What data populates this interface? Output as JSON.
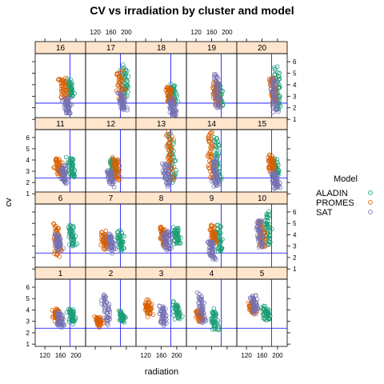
{
  "chart_data": {
    "type": "scatter",
    "title": "CV vs irradiation by cluster and model",
    "xlabel": "radiation",
    "ylabel": "cv",
    "xlim": [
      95,
      225
    ],
    "ylim": [
      0.8,
      6.7
    ],
    "x_ticks": [
      120,
      160,
      200
    ],
    "y_ticks": [
      1,
      2,
      3,
      4,
      5,
      6
    ],
    "vline_x": 185,
    "hline_y": 2.4,
    "grid": false,
    "legend_position": "right",
    "legend_title": "Model",
    "series": [
      {
        "name": "ALADIN",
        "color": "#1b9e77"
      },
      {
        "name": "PROMES",
        "color": "#d95f02"
      },
      {
        "name": "SAT",
        "color": "#7570b3"
      }
    ],
    "layout": [
      [
        16,
        17,
        18,
        19,
        20
      ],
      [
        11,
        12,
        13,
        14,
        15
      ],
      [
        6,
        7,
        8,
        9,
        10
      ],
      [
        1,
        2,
        3,
        4,
        5
      ]
    ],
    "panels": [
      {
        "cluster": "1",
        "groups": {
          "ALADIN": {
            "x": 190,
            "y": [
              2.9,
              4.1
            ]
          },
          "PROMES": {
            "x": 150,
            "y": [
              2.9,
              4.0
            ]
          },
          "SAT": {
            "x": 160,
            "y": [
              2.6,
              3.8
            ]
          }
        }
      },
      {
        "cluster": "2",
        "groups": {
          "ALADIN": {
            "x": 190,
            "y": [
              3.0,
              3.8
            ]
          },
          "PROMES": {
            "x": 128,
            "y": [
              2.7,
              3.3
            ]
          },
          "SAT": {
            "x": 148,
            "y": [
              2.8,
              5.3
            ]
          }
        }
      },
      {
        "cluster": "3",
        "groups": {
          "ALADIN": {
            "x": 200,
            "y": [
              3.3,
              4.5
            ]
          },
          "PROMES": {
            "x": 128,
            "y": [
              3.6,
              4.7
            ]
          },
          "SAT": {
            "x": 165,
            "y": [
              2.7,
              4.3
            ]
          }
        }
      },
      {
        "cluster": "4",
        "groups": {
          "ALADIN": {
            "x": 168,
            "y": [
              2.3,
              3.9
            ]
          },
          "PROMES": {
            "x": 128,
            "y": [
              3.1,
              3.9
            ]
          },
          "SAT": {
            "x": 135,
            "y": [
              2.9,
              5.4
            ]
          }
        }
      },
      {
        "cluster": "5",
        "groups": {
          "ALADIN": {
            "x": 172,
            "y": [
              3.2,
              4.1
            ]
          },
          "PROMES": {
            "x": 135,
            "y": [
              3.8,
              4.6
            ]
          },
          "SAT": {
            "x": 140,
            "y": [
              3.7,
              5.3
            ]
          }
        }
      },
      {
        "cluster": "6",
        "groups": {
          "ALADIN": {
            "x": 190,
            "y": [
              3.0,
              4.8
            ]
          },
          "PROMES": {
            "x": 152,
            "y": [
              2.2,
              4.9
            ]
          },
          "SAT": {
            "x": 155,
            "y": [
              2.7,
              4.0
            ]
          }
        }
      },
      {
        "cluster": "7",
        "groups": {
          "ALADIN": {
            "x": 185,
            "y": [
              2.7,
              4.2
            ]
          },
          "PROMES": {
            "x": 145,
            "y": [
              2.8,
              4.1
            ]
          },
          "SAT": {
            "x": 160,
            "y": [
              2.6,
              4.0
            ]
          }
        }
      },
      {
        "cluster": "8",
        "groups": {
          "ALADIN": {
            "x": 200,
            "y": [
              3.2,
              4.6
            ]
          },
          "PROMES": {
            "x": 165,
            "y": [
              3.1,
              4.7
            ]
          },
          "SAT": {
            "x": 175,
            "y": [
              2.7,
              4.2
            ]
          }
        }
      },
      {
        "cluster": "9",
        "groups": {
          "ALADIN": {
            "x": 180,
            "y": [
              2.5,
              4.7
            ]
          },
          "PROMES": {
            "x": 165,
            "y": [
              3.3,
              4.7
            ]
          },
          "SAT": {
            "x": 160,
            "y": [
              1.9,
              3.5
            ]
          }
        }
      },
      {
        "cluster": "10",
        "groups": {
          "ALADIN": {
            "x": 175,
            "y": [
              3.2,
              5.9
            ]
          },
          "PROMES": {
            "x": 160,
            "y": [
              2.9,
              5.1
            ]
          },
          "SAT": {
            "x": 155,
            "y": [
              3.0,
              5.3
            ]
          }
        }
      },
      {
        "cluster": "11",
        "groups": {
          "ALADIN": {
            "x": 190,
            "y": [
              2.5,
              4.1
            ]
          },
          "PROMES": {
            "x": 155,
            "y": [
              2.6,
              4.2
            ]
          },
          "SAT": {
            "x": 168,
            "y": [
              1.9,
              3.4
            ]
          }
        }
      },
      {
        "cluster": "12",
        "groups": {
          "ALADIN": {
            "x": 168,
            "y": [
              2.7,
              4.1
            ]
          },
          "PROMES": {
            "x": 175,
            "y": [
              2.3,
              4.2
            ]
          },
          "SAT": {
            "x": 158,
            "y": [
              1.9,
              3.0
            ]
          }
        }
      },
      {
        "cluster": "13",
        "groups": {
          "ALADIN": {
            "x": 188,
            "y": [
              2.0,
              6.2
            ]
          },
          "PROMES": {
            "x": 182,
            "y": [
              2.3,
              6.3
            ]
          },
          "SAT": {
            "x": 175,
            "y": [
              1.9,
              3.6
            ]
          }
        }
      },
      {
        "cluster": "14",
        "groups": {
          "ALADIN": {
            "x": 175,
            "y": [
              2.0,
              6.0
            ]
          },
          "PROMES": {
            "x": 158,
            "y": [
              2.4,
              6.4
            ]
          },
          "SAT": {
            "x": 170,
            "y": [
              1.7,
              4.0
            ]
          }
        }
      },
      {
        "cluster": "15",
        "groups": {
          "ALADIN": {
            "x": 195,
            "y": [
              2.6,
              4.1
            ]
          },
          "PROMES": {
            "x": 185,
            "y": [
              3.0,
              4.3
            ]
          },
          "SAT": {
            "x": 195,
            "y": [
              1.5,
              2.8
            ]
          }
        }
      },
      {
        "cluster": "16",
        "groups": {
          "ALADIN": {
            "x": 185,
            "y": [
              3.0,
              4.3
            ]
          },
          "PROMES": {
            "x": 168,
            "y": [
              2.9,
              4.5
            ]
          },
          "SAT": {
            "x": 178,
            "y": [
              1.6,
              2.8
            ]
          }
        }
      },
      {
        "cluster": "17",
        "groups": {
          "ALADIN": {
            "x": 195,
            "y": [
              3.0,
              5.5
            ]
          },
          "PROMES": {
            "x": 185,
            "y": [
              2.4,
              5.2
            ]
          },
          "SAT": {
            "x": 190,
            "y": [
              1.8,
              3.2
            ]
          }
        }
      },
      {
        "cluster": "18",
        "groups": {
          "ALADIN": {
            "x": 190,
            "y": [
              2.5,
              3.9
            ]
          },
          "PROMES": {
            "x": 180,
            "y": [
              2.4,
              3.9
            ]
          },
          "SAT": {
            "x": 190,
            "y": [
              1.3,
              2.7
            ]
          }
        }
      },
      {
        "cluster": "19",
        "groups": {
          "ALADIN": {
            "x": 180,
            "y": [
              2.2,
              4.1
            ]
          },
          "PROMES": {
            "x": 172,
            "y": [
              2.2,
              4.1
            ]
          },
          "SAT": {
            "x": 175,
            "y": [
              1.9,
              5.0
            ]
          }
        }
      },
      {
        "cluster": "20",
        "groups": {
          "ALADIN": {
            "x": 200,
            "y": [
              1.9,
              5.5
            ]
          },
          "PROMES": {
            "x": 188,
            "y": [
              2.5,
              4.6
            ]
          },
          "SAT": {
            "x": 192,
            "y": [
              1.7,
              4.5
            ]
          }
        }
      }
    ]
  }
}
